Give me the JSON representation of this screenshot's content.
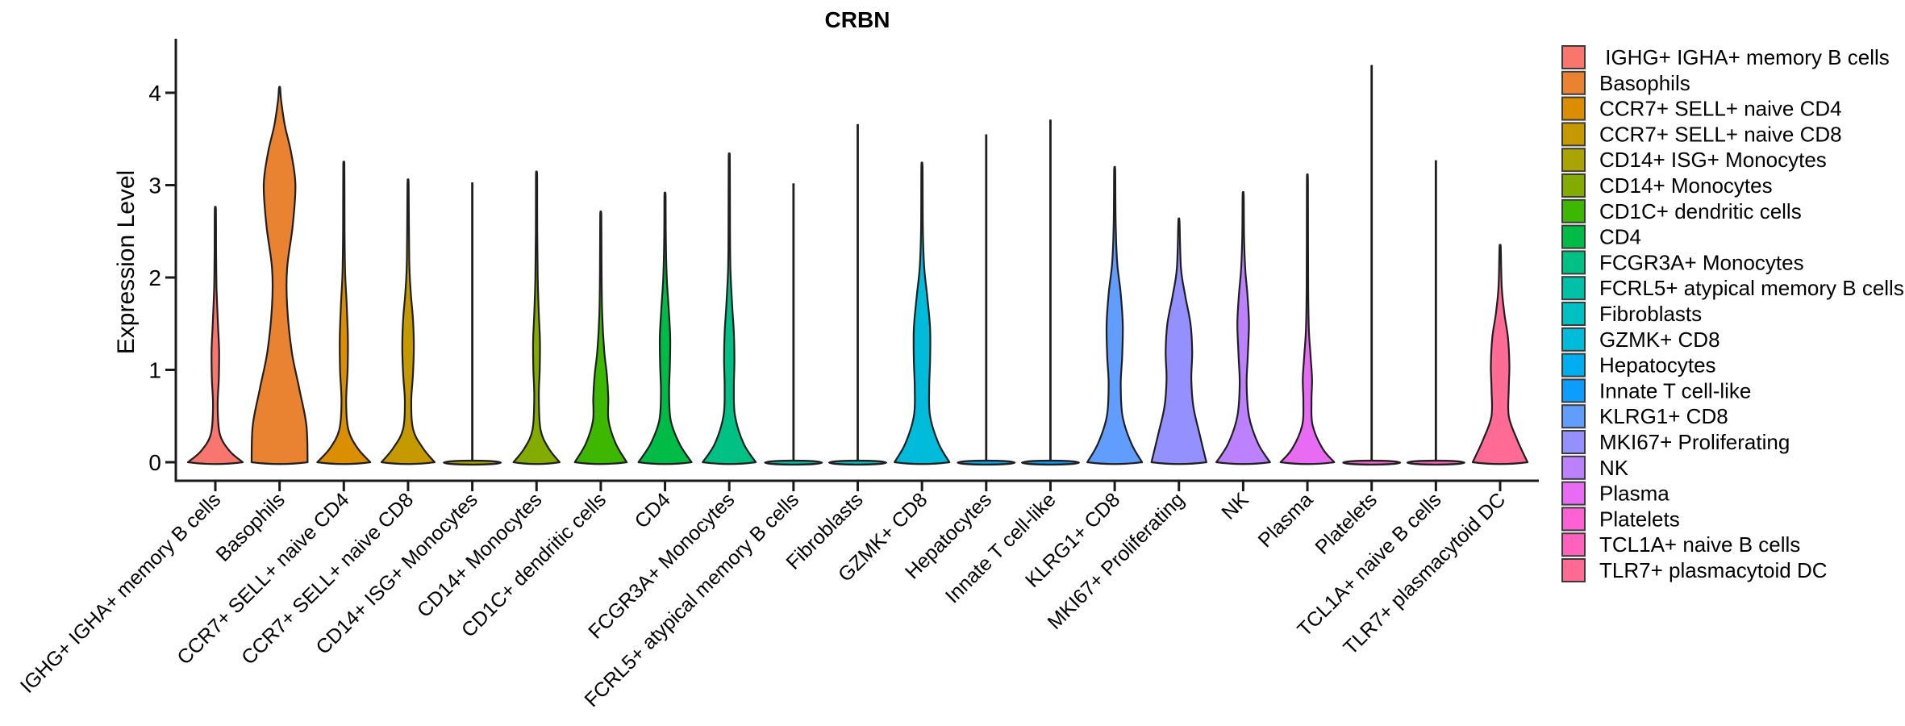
{
  "chart_data": {
    "type": "violin",
    "title": "CRBN",
    "xlabel": "",
    "ylabel": "Expression Level",
    "yticks": [
      0,
      1,
      2,
      3,
      4
    ],
    "ylim": [
      0,
      4.6
    ],
    "grid": false,
    "legend_position": "right",
    "axis_color": "#1A1A1A",
    "violin_outline_color": "#1F1F1F",
    "violins": [
      {
        "label": "IGHG+ IGHA+ memory B cells",
        "legend_label": " IGHG+ IGHA+ memory B cells",
        "color": "#F8766D",
        "max_expression": 2.73,
        "flat": false,
        "profile": [
          [
            0,
            0.95
          ],
          [
            0.12,
            0.5
          ],
          [
            0.3,
            0.16
          ],
          [
            0.6,
            0.08
          ],
          [
            0.9,
            0.12
          ],
          [
            1.2,
            0.13
          ],
          [
            1.5,
            0.09
          ],
          [
            1.9,
            0.04
          ],
          [
            2.3,
            0.026
          ],
          [
            2.73,
            0.02
          ]
        ]
      },
      {
        "label": "Basophils",
        "legend_label": "Basophils",
        "color": "#EA8331",
        "max_expression": 4.05,
        "flat": false,
        "profile": [
          [
            0,
            0.97
          ],
          [
            0.4,
            0.93
          ],
          [
            0.8,
            0.68
          ],
          [
            1.2,
            0.42
          ],
          [
            1.7,
            0.26
          ],
          [
            2.1,
            0.26
          ],
          [
            2.55,
            0.45
          ],
          [
            3.0,
            0.55
          ],
          [
            3.35,
            0.4
          ],
          [
            3.65,
            0.18
          ],
          [
            3.9,
            0.06
          ],
          [
            4.05,
            0.02
          ]
        ]
      },
      {
        "label": "CCR7+ SELL+ naive CD4",
        "legend_label": "CCR7+ SELL+ naive CD4",
        "color": "#DB8E00",
        "max_expression": 3.2,
        "flat": false,
        "profile": [
          [
            0,
            0.92
          ],
          [
            0.15,
            0.48
          ],
          [
            0.35,
            0.16
          ],
          [
            0.65,
            0.08
          ],
          [
            1.0,
            0.13
          ],
          [
            1.35,
            0.14
          ],
          [
            1.7,
            0.1
          ],
          [
            2.05,
            0.045
          ],
          [
            2.5,
            0.026
          ],
          [
            3.2,
            0.02
          ]
        ]
      },
      {
        "label": "CCR7+ SELL+ naive CD8",
        "legend_label": "CCR7+ SELL+ naive CD8",
        "color": "#C59900",
        "max_expression": 3.0,
        "flat": false,
        "profile": [
          [
            0,
            0.92
          ],
          [
            0.15,
            0.52
          ],
          [
            0.35,
            0.18
          ],
          [
            0.65,
            0.11
          ],
          [
            0.95,
            0.17
          ],
          [
            1.25,
            0.2
          ],
          [
            1.55,
            0.17
          ],
          [
            1.85,
            0.09
          ],
          [
            2.2,
            0.04
          ],
          [
            3.0,
            0.02
          ]
        ]
      },
      {
        "label": "CD14+ ISG+ Monocytes",
        "legend_label": "CD14+ ISG+ Monocytes",
        "color": "#A9A400",
        "max_expression": 3.03,
        "flat": true,
        "profile": []
      },
      {
        "label": "CD14+ Monocytes",
        "legend_label": "CD14+ Monocytes",
        "color": "#84AB00",
        "max_expression": 3.1,
        "flat": false,
        "profile": [
          [
            0,
            0.8
          ],
          [
            0.15,
            0.42
          ],
          [
            0.35,
            0.14
          ],
          [
            0.7,
            0.08
          ],
          [
            1.0,
            0.11
          ],
          [
            1.3,
            0.12
          ],
          [
            1.6,
            0.08
          ],
          [
            2.0,
            0.04
          ],
          [
            2.5,
            0.025
          ],
          [
            3.1,
            0.02
          ]
        ]
      },
      {
        "label": "CD1C+ dendritic cells",
        "legend_label": "CD1C+ dendritic cells",
        "color": "#3DB700",
        "max_expression": 2.67,
        "flat": false,
        "profile": [
          [
            0,
            0.9
          ],
          [
            0.2,
            0.52
          ],
          [
            0.45,
            0.27
          ],
          [
            0.7,
            0.26
          ],
          [
            0.95,
            0.21
          ],
          [
            1.2,
            0.12
          ],
          [
            1.6,
            0.05
          ],
          [
            2.1,
            0.027
          ],
          [
            2.67,
            0.02
          ]
        ]
      },
      {
        "label": "CD4",
        "legend_label": "CD4",
        "color": "#00BB45",
        "max_expression": 2.88,
        "flat": false,
        "profile": [
          [
            0,
            0.92
          ],
          [
            0.2,
            0.5
          ],
          [
            0.45,
            0.2
          ],
          [
            0.75,
            0.14
          ],
          [
            1.05,
            0.17
          ],
          [
            1.35,
            0.18
          ],
          [
            1.65,
            0.13
          ],
          [
            2.0,
            0.06
          ],
          [
            2.4,
            0.028
          ],
          [
            2.88,
            0.02
          ]
        ]
      },
      {
        "label": "FCGR3A+ Monocytes",
        "legend_label": "FCGR3A+ Monocytes",
        "color": "#00C084",
        "max_expression": 3.29,
        "flat": false,
        "profile": [
          [
            0,
            0.92
          ],
          [
            0.2,
            0.5
          ],
          [
            0.5,
            0.2
          ],
          [
            0.8,
            0.16
          ],
          [
            1.1,
            0.18
          ],
          [
            1.4,
            0.16
          ],
          [
            1.7,
            0.1
          ],
          [
            2.1,
            0.04
          ],
          [
            2.6,
            0.025
          ],
          [
            3.29,
            0.02
          ]
        ]
      },
      {
        "label": "FCRL5+ atypical memory B cells",
        "legend_label": "FCRL5+ atypical memory B cells",
        "color": "#00C1A7",
        "max_expression": 3.02,
        "flat": true,
        "profile": []
      },
      {
        "label": "Fibroblasts",
        "legend_label": "Fibroblasts",
        "color": "#00C0C2",
        "max_expression": 3.66,
        "flat": true,
        "profile": []
      },
      {
        "label": "GZMK+ CD8",
        "legend_label": "GZMK+ CD8",
        "color": "#00BBDA",
        "max_expression": 3.19,
        "flat": false,
        "profile": [
          [
            0,
            0.95
          ],
          [
            0.2,
            0.58
          ],
          [
            0.5,
            0.28
          ],
          [
            0.8,
            0.25
          ],
          [
            1.1,
            0.28
          ],
          [
            1.45,
            0.28
          ],
          [
            1.8,
            0.18
          ],
          [
            2.1,
            0.08
          ],
          [
            2.5,
            0.032
          ],
          [
            3.19,
            0.02
          ]
        ]
      },
      {
        "label": "Hepatocytes",
        "legend_label": "Hepatocytes",
        "color": "#00ADEF",
        "max_expression": 3.55,
        "flat": true,
        "profile": []
      },
      {
        "label": "Innate T cell-like",
        "legend_label": "Innate T cell-like",
        "color": "#0D9DFF",
        "max_expression": 3.71,
        "flat": true,
        "profile": []
      },
      {
        "label": "KLRG1+ CD8",
        "legend_label": "KLRG1+ CD8",
        "color": "#619CFF",
        "max_expression": 3.15,
        "flat": false,
        "profile": [
          [
            0,
            0.95
          ],
          [
            0.2,
            0.58
          ],
          [
            0.5,
            0.27
          ],
          [
            0.85,
            0.21
          ],
          [
            1.15,
            0.26
          ],
          [
            1.5,
            0.28
          ],
          [
            1.85,
            0.2
          ],
          [
            2.15,
            0.09
          ],
          [
            2.55,
            0.035
          ],
          [
            3.15,
            0.02
          ]
        ]
      },
      {
        "label": "MKI67+ Proliferating",
        "legend_label": "MKI67+ Proliferating",
        "color": "#9590FF",
        "max_expression": 2.6,
        "flat": false,
        "profile": [
          [
            0,
            0.95
          ],
          [
            0.3,
            0.72
          ],
          [
            0.6,
            0.5
          ],
          [
            0.9,
            0.43
          ],
          [
            1.2,
            0.46
          ],
          [
            1.5,
            0.4
          ],
          [
            1.8,
            0.22
          ],
          [
            2.1,
            0.07
          ],
          [
            2.6,
            0.02
          ]
        ]
      },
      {
        "label": "NK",
        "legend_label": "NK",
        "color": "#BC81FF",
        "max_expression": 2.89,
        "flat": false,
        "profile": [
          [
            0,
            0.93
          ],
          [
            0.2,
            0.52
          ],
          [
            0.5,
            0.2
          ],
          [
            0.85,
            0.12
          ],
          [
            1.15,
            0.16
          ],
          [
            1.5,
            0.2
          ],
          [
            1.8,
            0.15
          ],
          [
            2.1,
            0.07
          ],
          [
            2.45,
            0.03
          ],
          [
            2.89,
            0.02
          ]
        ]
      },
      {
        "label": "Plasma",
        "legend_label": "Plasma",
        "color": "#E76BF3",
        "max_expression": 3.03,
        "flat": false,
        "profile": [
          [
            0,
            0.93
          ],
          [
            0.15,
            0.52
          ],
          [
            0.4,
            0.18
          ],
          [
            0.65,
            0.14
          ],
          [
            0.9,
            0.16
          ],
          [
            1.15,
            0.11
          ],
          [
            1.45,
            0.05
          ],
          [
            1.9,
            0.026
          ],
          [
            3.03,
            0.018
          ]
        ]
      },
      {
        "label": "Platelets",
        "legend_label": "Platelets",
        "color": "#FD61D3",
        "max_expression": 4.3,
        "flat": true,
        "profile": []
      },
      {
        "label": "TCL1A+ naive B cells",
        "legend_label": "TCL1A+ naive B cells",
        "color": "#FF62BA",
        "max_expression": 3.27,
        "flat": true,
        "profile": []
      },
      {
        "label": "TLR7+ plasmacytoid DC",
        "legend_label": "TLR7+ plasmacytoid DC",
        "color": "#FF6B94",
        "max_expression": 2.32,
        "flat": false,
        "profile": [
          [
            0,
            0.95
          ],
          [
            0.25,
            0.58
          ],
          [
            0.5,
            0.3
          ],
          [
            0.8,
            0.3
          ],
          [
            1.05,
            0.32
          ],
          [
            1.35,
            0.27
          ],
          [
            1.6,
            0.15
          ],
          [
            1.9,
            0.055
          ],
          [
            2.32,
            0.022
          ]
        ]
      }
    ]
  }
}
